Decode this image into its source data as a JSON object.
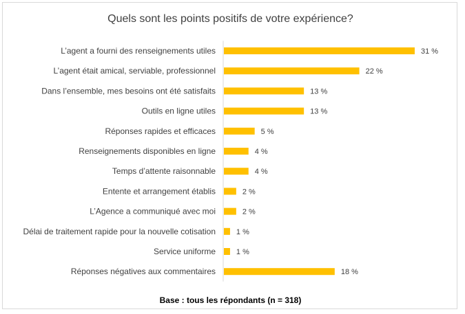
{
  "chart_data": {
    "type": "bar",
    "orientation": "horizontal",
    "title": "Quels sont les points positifs de votre expérience?",
    "categories": [
      "L’agent a fourni des renseignements utiles",
      "L’agent était amical, serviable, professionnel",
      "Dans l’ensemble,  mes besoins ont été satisfaits",
      "Outils en ligne utiles",
      "Réponses rapides et efficaces",
      "Renseignements disponibles en ligne",
      "Temps d’attente raisonnable",
      "Entente et arrangement établis",
      "L’Agence a communiqué avec moi",
      "Délai de traitement rapide pour la nouvelle cotisation",
      "Service uniforme",
      "Réponses négatives aux commentaires"
    ],
    "values": [
      31,
      22,
      13,
      13,
      5,
      4,
      4,
      2,
      2,
      1,
      1,
      18
    ],
    "value_labels": [
      "31 %",
      "22 %",
      "13 %",
      "13 %",
      "5 %",
      "4 %",
      "4 %",
      "2 %",
      "2 %",
      "1 %",
      "1 %",
      "18 %"
    ],
    "unit": "%",
    "bar_color": "#FFC000",
    "xlim": [
      0,
      31
    ],
    "grid": false,
    "legend": "none"
  },
  "footer": {
    "base_text": "Base : tous les répondants (n = 318)"
  }
}
